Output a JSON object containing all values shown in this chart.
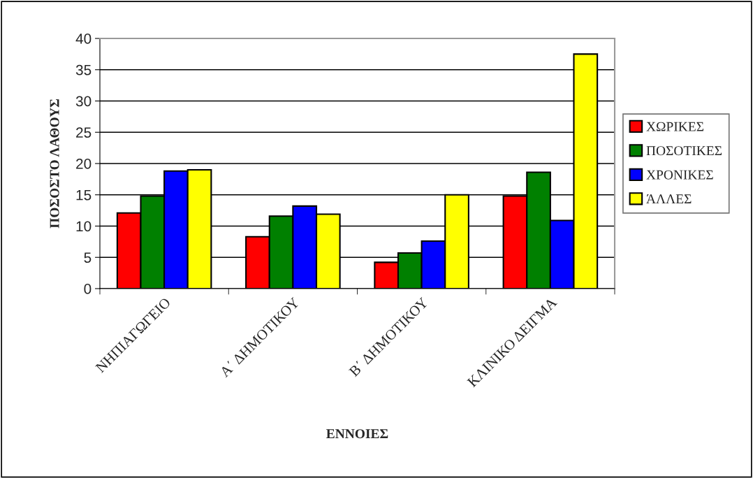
{
  "chart_data": {
    "type": "bar",
    "xlabel": "ΕΝΝΟΙΕΣ",
    "ylabel": "ΠΟΣΟΣΤΟ ΛΑΘΟΥΣ",
    "categories": [
      "ΝΗΠΙΑΓΩΓΕΙΟ",
      "Α΄ ΔΗΜΟΤΙΚΟΥ",
      "Β΄ ΔΗΜΟΤΙΚΟΥ",
      "ΚΛΙΝΙΚΟ ΔΕΙΓΜΑ"
    ],
    "series": [
      {
        "name": "ΧΩΡΙΚΕΣ",
        "color": "#ff0000",
        "values": [
          12.1,
          8.3,
          4.2,
          14.8
        ]
      },
      {
        "name": "ΠΟΣΟΤΙΚΕΣ",
        "color": "#008000",
        "values": [
          14.8,
          11.6,
          5.7,
          18.6
        ]
      },
      {
        "name": "ΧΡΟΝΙΚΕΣ",
        "color": "#0000ff",
        "values": [
          18.8,
          13.2,
          7.6,
          10.9
        ]
      },
      {
        "name": "ΆΛΛΕΣ",
        "color": "#ffff00",
        "values": [
          19.0,
          11.9,
          15.0,
          37.5
        ]
      }
    ],
    "ylim": [
      0,
      40
    ],
    "yticks": [
      0,
      5,
      10,
      15,
      20,
      25,
      30,
      35,
      40
    ],
    "grid": "y",
    "legend": "right"
  }
}
